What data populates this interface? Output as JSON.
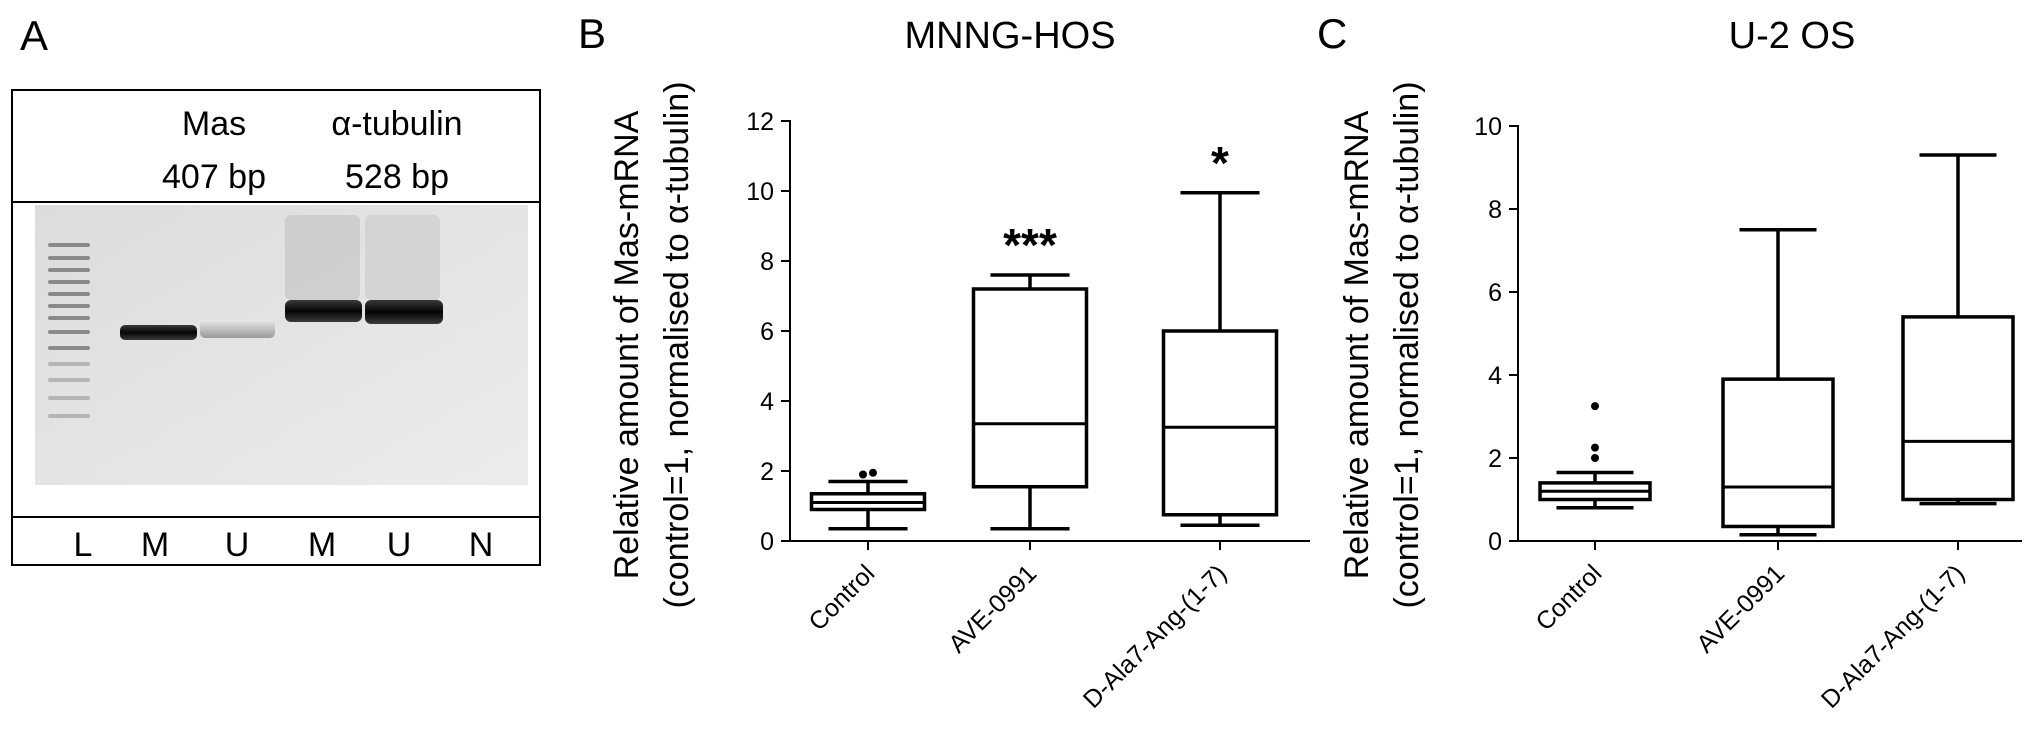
{
  "panelA": {
    "letter": "A",
    "header": [
      {
        "name": "Mas",
        "size": "407 bp"
      },
      {
        "name": "α-tubulin",
        "size": "528 bp"
      }
    ],
    "lanes": [
      "L",
      "M",
      "U",
      "M",
      "U",
      "N"
    ]
  },
  "chart_data": [
    {
      "panel": "B",
      "type": "box",
      "title": "MNNG-HOS",
      "ylabel_line1": "Relative amount of Mas-mRNA",
      "ylabel_line2": "(control=1, normalised to α-tubulin)",
      "ylim": [
        0,
        12
      ],
      "yticks": [
        0,
        2,
        4,
        6,
        8,
        10,
        12
      ],
      "categories": [
        "Control",
        "AVE-0991",
        "D-Ala7-Ang-(1-7)"
      ],
      "boxes": [
        {
          "min": 0.35,
          "q1": 0.9,
          "median": 1.1,
          "q3": 1.35,
          "max": 1.7,
          "outliers": [
            1.9,
            1.95
          ],
          "significance": ""
        },
        {
          "min": 0.35,
          "q1": 1.55,
          "median": 3.35,
          "q3": 7.2,
          "max": 7.6,
          "outliers": [],
          "significance": "***"
        },
        {
          "min": 0.45,
          "q1": 0.75,
          "median": 3.25,
          "q3": 6.0,
          "max": 9.95,
          "outliers": [],
          "significance": "*"
        }
      ]
    },
    {
      "panel": "C",
      "type": "box",
      "title": "U-2 OS",
      "ylabel_line1": "Relative amount of Mas-mRNA",
      "ylabel_line2": "(control=1, normalised to α-tubulin)",
      "ylim": [
        0,
        10
      ],
      "yticks": [
        0,
        2,
        4,
        6,
        8,
        10
      ],
      "categories": [
        "Control",
        "AVE-0991",
        "D-Ala7-Ang-(1-7)"
      ],
      "boxes": [
        {
          "min": 0.8,
          "q1": 1.0,
          "median": 1.2,
          "q3": 1.4,
          "max": 1.65,
          "outliers": [
            2.0,
            2.25,
            3.25
          ],
          "significance": ""
        },
        {
          "min": 0.15,
          "q1": 0.35,
          "median": 1.3,
          "q3": 3.9,
          "max": 7.5,
          "outliers": [],
          "significance": ""
        },
        {
          "min": 0.9,
          "q1": 1.0,
          "median": 2.4,
          "q3": 5.4,
          "max": 9.3,
          "outliers": [],
          "significance": ""
        }
      ]
    }
  ]
}
